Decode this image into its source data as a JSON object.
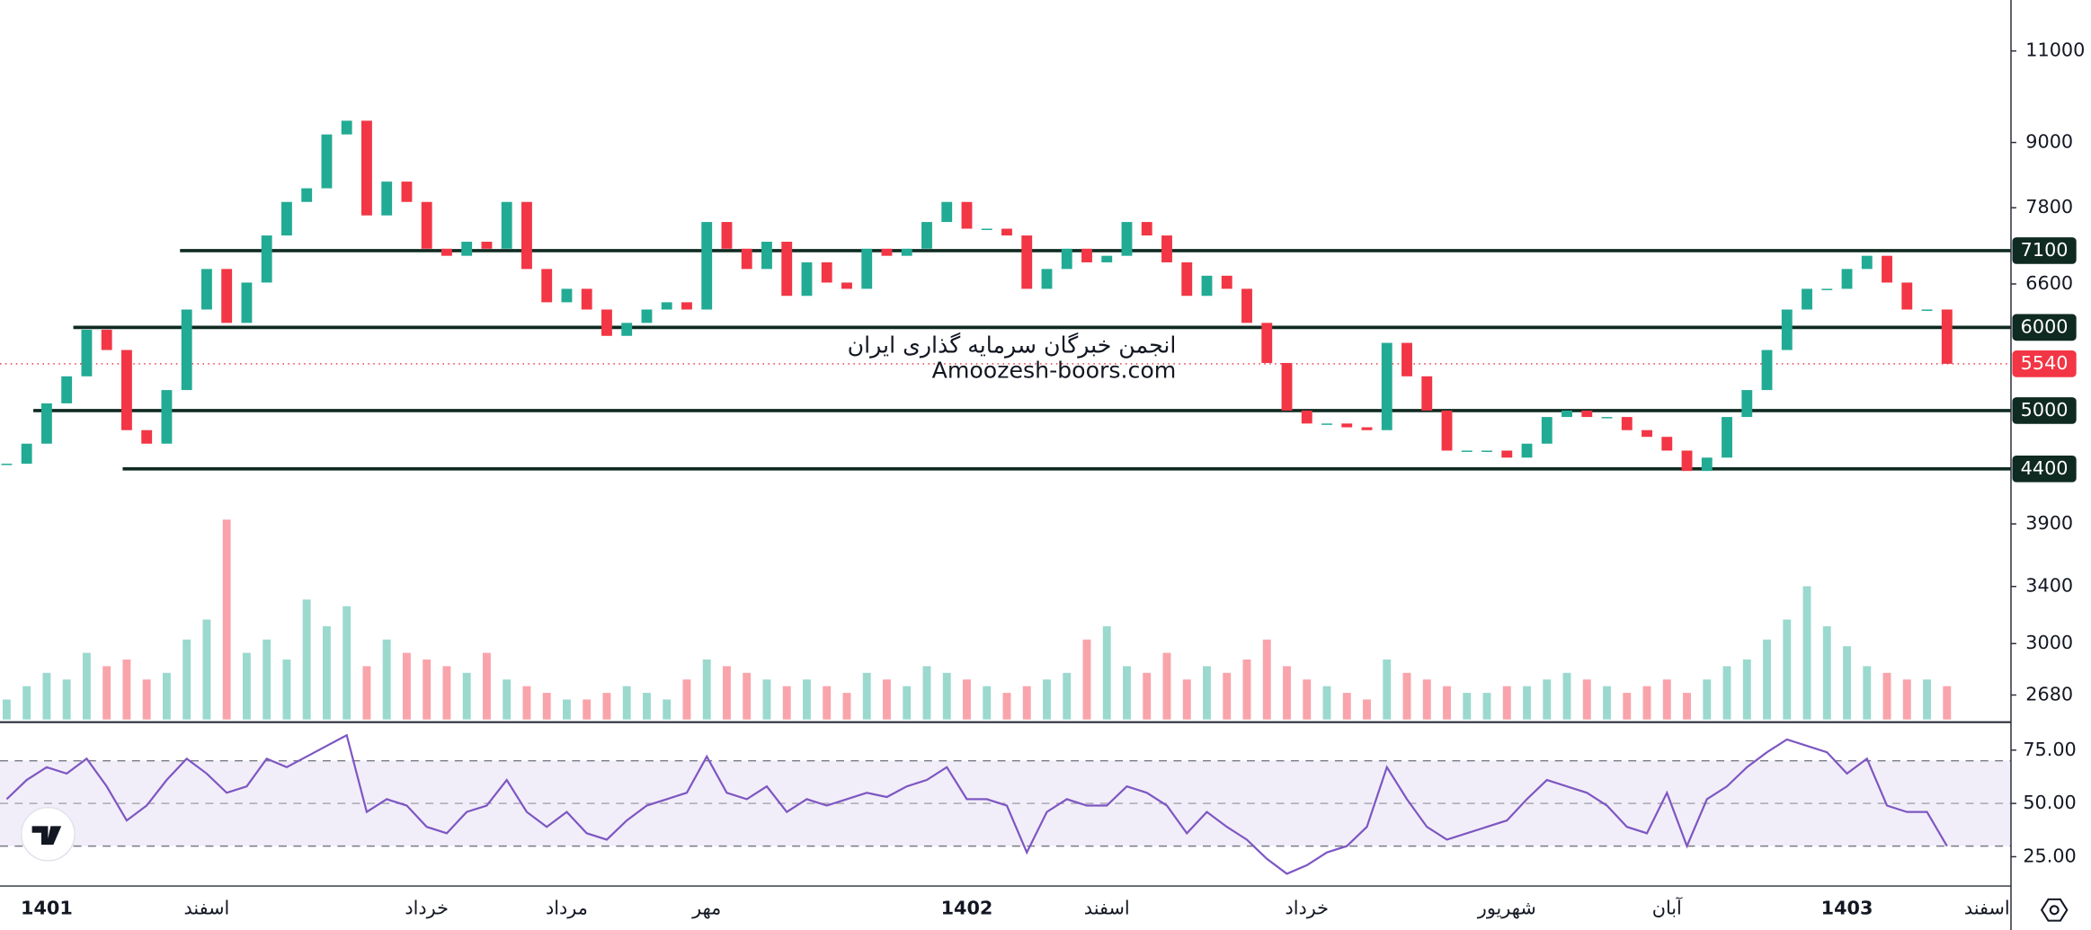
{
  "chart_data": {
    "type": "candlestick",
    "categories": [
      null,
      null,
      "1401",
      null,
      null,
      null,
      null,
      null,
      null,
      null,
      "اسفند",
      null,
      null,
      null,
      null,
      null,
      null,
      null,
      null,
      null,
      null,
      "خرداد",
      null,
      null,
      null,
      null,
      null,
      null,
      "مرداد",
      null,
      null,
      null,
      null,
      null,
      null,
      "مهر",
      null,
      null,
      null,
      null,
      null,
      null,
      null,
      null,
      null,
      null,
      null,
      null,
      "1402",
      null,
      null,
      null,
      null,
      null,
      null,
      "اسفند",
      null,
      null,
      null,
      null,
      null,
      null,
      null,
      null,
      null,
      "خرداد",
      null,
      null,
      null,
      null,
      null,
      null,
      null,
      null,
      null,
      "شهریور",
      null,
      null,
      null,
      null,
      null,
      null,
      null,
      "آبان",
      null,
      null,
      null,
      null,
      null,
      null,
      null,
      null,
      "1403",
      null,
      null,
      null,
      null,
      null,
      null,
      "اسفند"
    ],
    "close": [
      4450,
      4650,
      5080,
      5390,
      5970,
      5710,
      4790,
      4650,
      5230,
      6240,
      6820,
      6060,
      6620,
      7340,
      7900,
      8140,
      9160,
      9440,
      7670,
      8260,
      7900,
      7130,
      7020,
      7240,
      7130,
      7900,
      6820,
      6340,
      6530,
      6240,
      5890,
      6060,
      6240,
      6340,
      6240,
      7560,
      7130,
      6820,
      7240,
      6430,
      6920,
      6620,
      6530,
      7130,
      7020,
      7130,
      7560,
      7900,
      7450,
      7450,
      7340,
      6530,
      6820,
      7130,
      6920,
      7020,
      7560,
      7340,
      6920,
      6430,
      6720,
      6530,
      6060,
      5550,
      5000,
      4860,
      4860,
      4820,
      4790,
      5800,
      5390,
      5000,
      4580,
      4580,
      4580,
      4510,
      4650,
      4930,
      5000,
      4930,
      4930,
      4790,
      4720,
      4580,
      4380,
      4510,
      4930,
      5230,
      5710,
      6240,
      6530,
      6530,
      6820,
      7020,
      6620,
      6240,
      6240,
      5540,
      null,
      null
    ],
    "volume": [
      15,
      25,
      35,
      30,
      50,
      40,
      45,
      30,
      35,
      60,
      75,
      150,
      50,
      60,
      45,
      90,
      70,
      85,
      40,
      60,
      50,
      45,
      40,
      35,
      50,
      30,
      25,
      20,
      15,
      15,
      20,
      25,
      20,
      15,
      30,
      45,
      40,
      35,
      30,
      25,
      30,
      25,
      20,
      35,
      30,
      25,
      40,
      35,
      30,
      25,
      20,
      25,
      30,
      35,
      60,
      70,
      40,
      35,
      50,
      30,
      40,
      35,
      45,
      60,
      40,
      30,
      25,
      20,
      15,
      45,
      35,
      30,
      25,
      20,
      20,
      25,
      25,
      30,
      35,
      30,
      25,
      20,
      25,
      30,
      20,
      30,
      40,
      45,
      60,
      75,
      100,
      70,
      55,
      40,
      35,
      30,
      30,
      25,
      null,
      null
    ],
    "volume_lim": [
      0,
      160
    ],
    "rsi": [
      52,
      61,
      67,
      64,
      71,
      58,
      42,
      49,
      61,
      71,
      64,
      55,
      58,
      71,
      67,
      72,
      77,
      82,
      46,
      52,
      49,
      39,
      36,
      46,
      49,
      61,
      46,
      39,
      46,
      36,
      33,
      42,
      49,
      52,
      55,
      72,
      55,
      52,
      58,
      46,
      52,
      49,
      52,
      55,
      53,
      58,
      61,
      67,
      52,
      52,
      49,
      27,
      46,
      52,
      49,
      49,
      58,
      55,
      49,
      36,
      46,
      39,
      33,
      24,
      17,
      21,
      27,
      30,
      39,
      67,
      52,
      39,
      33,
      36,
      39,
      42,
      52,
      61,
      58,
      55,
      49,
      39,
      36,
      55,
      30,
      52,
      58,
      67,
      74,
      80,
      77,
      74,
      64,
      71,
      49,
      46,
      46,
      30,
      null,
      null
    ],
    "ylim": [
      2540,
      12300
    ],
    "log": true,
    "yticks": [
      11000,
      9000,
      7800,
      6600,
      3900,
      3400,
      3000,
      2680
    ],
    "levels": [
      7100,
      6000,
      5000,
      4400
    ],
    "last_price": 5540,
    "rsi_lim": [
      11.25,
      87.5
    ],
    "rsi_ticks": [
      {
        "value": 75,
        "label": "75.00"
      },
      {
        "value": 50,
        "label": "50.00"
      },
      {
        "value": 25,
        "label": "25.00"
      }
    ],
    "rsi_band": [
      30,
      70
    ],
    "up_color": "#22ab94",
    "down_color": "#f23645",
    "rsi_color": "#7e57c2",
    "level_color": "#0f2a20",
    "watermark": [
      "انجمن خبرگان سرمایه گذاری ایران",
      "Amoozesh-boors.com"
    ]
  }
}
